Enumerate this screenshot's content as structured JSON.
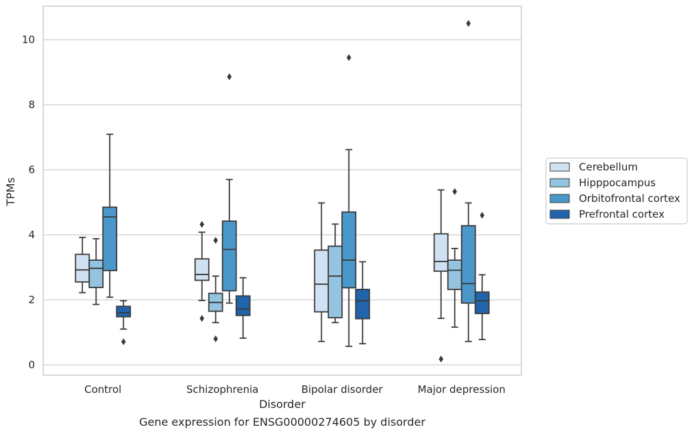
{
  "chart_data": {
    "type": "boxplot",
    "title": "",
    "caption": "Gene expression for ENSG00000274605 by disorder",
    "xlabel": "Disorder",
    "ylabel": "TPMs",
    "ylim": [
      -0.3,
      11.0
    ],
    "yticks": [
      0,
      2,
      4,
      6,
      8,
      10
    ],
    "grid": "horizontal",
    "legend_position": "right",
    "categories": [
      "Control",
      "Schizophrenia",
      "Bipolar disorder",
      "Major depression"
    ],
    "series": [
      {
        "name": "Cerebellum",
        "color": "#d0e1f2",
        "boxes": [
          {
            "whislo": 2.22,
            "q1": 2.55,
            "med": 2.92,
            "q3": 3.4,
            "whishi": 3.92,
            "fliers": []
          },
          {
            "whislo": 1.98,
            "q1": 2.6,
            "med": 2.78,
            "q3": 3.26,
            "whishi": 4.08,
            "fliers": [
              1.43,
              4.32
            ]
          },
          {
            "whislo": 0.72,
            "q1": 1.63,
            "med": 2.48,
            "q3": 3.53,
            "whishi": 4.98,
            "fliers": []
          },
          {
            "whislo": 1.43,
            "q1": 2.88,
            "med": 3.18,
            "q3": 4.03,
            "whishi": 5.38,
            "fliers": [
              0.18
            ]
          }
        ]
      },
      {
        "name": "Hipppocampus",
        "color": "#94c4df",
        "boxes": [
          {
            "whislo": 1.86,
            "q1": 2.38,
            "med": 2.97,
            "q3": 3.22,
            "whishi": 3.88,
            "fliers": []
          },
          {
            "whislo": 1.3,
            "q1": 1.65,
            "med": 1.92,
            "q3": 2.2,
            "whishi": 2.73,
            "fliers": [
              0.8,
              3.83
            ]
          },
          {
            "whislo": 1.3,
            "q1": 1.45,
            "med": 2.73,
            "q3": 3.65,
            "whishi": 4.33,
            "fliers": []
          },
          {
            "whislo": 1.16,
            "q1": 2.32,
            "med": 2.91,
            "q3": 3.22,
            "whishi": 3.58,
            "fliers": [
              5.33
            ]
          }
        ]
      },
      {
        "name": "Orbitofrontal cortex",
        "color": "#4a98c9",
        "boxes": [
          {
            "whislo": 2.08,
            "q1": 2.9,
            "med": 4.55,
            "q3": 4.85,
            "whishi": 7.09,
            "fliers": []
          },
          {
            "whislo": 1.9,
            "q1": 2.28,
            "med": 3.55,
            "q3": 4.42,
            "whishi": 5.7,
            "fliers": [
              8.86
            ]
          },
          {
            "whislo": 0.57,
            "q1": 2.37,
            "med": 3.22,
            "q3": 4.7,
            "whishi": 6.62,
            "fliers": [
              9.45
            ]
          },
          {
            "whislo": 0.72,
            "q1": 1.9,
            "med": 2.5,
            "q3": 4.28,
            "whishi": 4.98,
            "fliers": [
              10.5
            ]
          }
        ]
      },
      {
        "name": "Prefrontal cortex",
        "color": "#2164ab",
        "boxes": [
          {
            "whislo": 1.1,
            "q1": 1.48,
            "med": 1.6,
            "q3": 1.8,
            "whishi": 1.97,
            "fliers": [
              0.71
            ]
          },
          {
            "whislo": 0.82,
            "q1": 1.52,
            "med": 1.72,
            "q3": 2.12,
            "whishi": 2.68,
            "fliers": []
          },
          {
            "whislo": 0.65,
            "q1": 1.42,
            "med": 1.97,
            "q3": 2.32,
            "whishi": 3.17,
            "fliers": []
          },
          {
            "whislo": 0.78,
            "q1": 1.58,
            "med": 1.97,
            "q3": 2.24,
            "whishi": 2.77,
            "fliers": [
              4.6
            ]
          }
        ]
      }
    ]
  }
}
